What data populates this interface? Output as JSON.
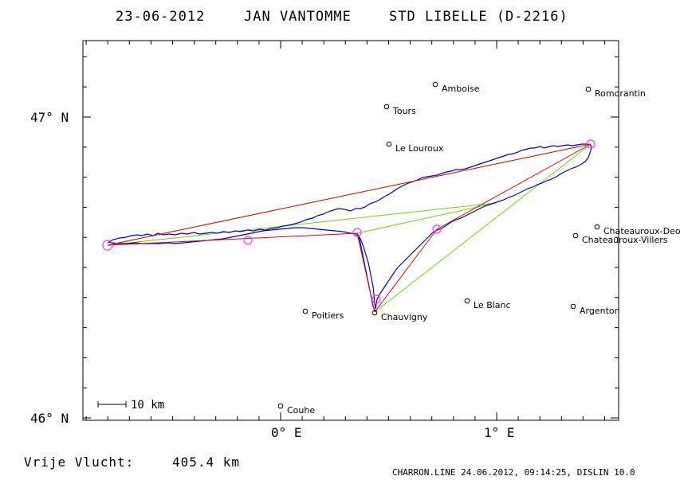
{
  "title": {
    "date": "23-06-2012",
    "pilot": "JAN VANTOMME",
    "glider": "STD LIBELLE (D-2216)"
  },
  "axes": {
    "lat_labels": [
      "47° N",
      "46° N"
    ],
    "lon_labels": [
      "0° E",
      "1° E"
    ]
  },
  "scale_bar_label": "10 km",
  "places": [
    {
      "name": "Amboise"
    },
    {
      "name": "Romorantin"
    },
    {
      "name": "Tours"
    },
    {
      "name": "Le Louroux"
    },
    {
      "name": "Chateauroux-Deols"
    },
    {
      "name": "Chateauroux-Villers"
    },
    {
      "name": "Poitiers"
    },
    {
      "name": "Le Blanc"
    },
    {
      "name": "Argenton"
    },
    {
      "name": "Chauvigny"
    },
    {
      "name": "Couhe"
    }
  ],
  "footer": {
    "distance_label": "Vrije Vlucht:",
    "distance_value": "405.4 km",
    "file_info": "CHARRON.LINE 24.06.2012, 09:14:25, DISLIN 10.0"
  },
  "colors": {
    "track": "#0000cc",
    "task_legs": "#ee0000",
    "sector_lines": "#66dd00",
    "turnpoints": "#ff33ff"
  }
}
